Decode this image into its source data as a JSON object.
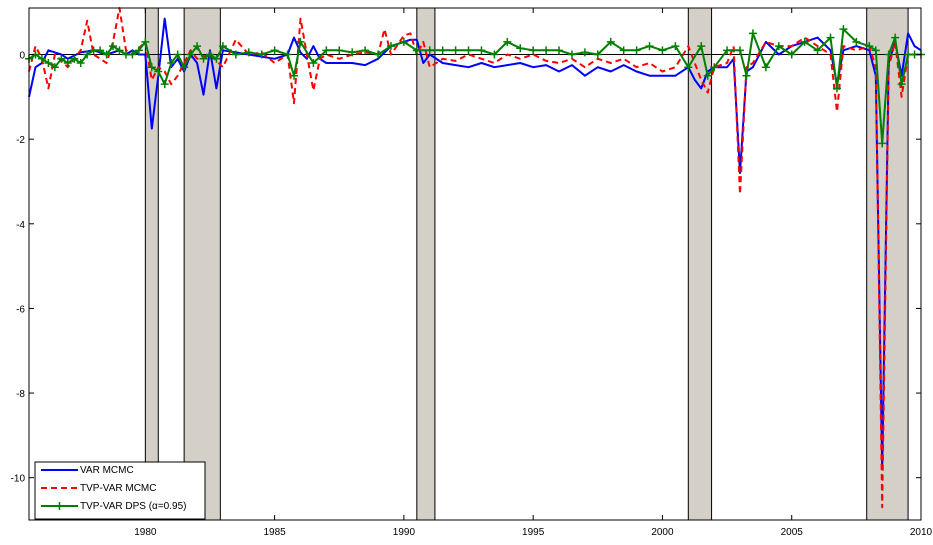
{
  "chart_data": {
    "type": "line",
    "title": "",
    "xlabel": "",
    "ylabel": "",
    "xlim": [
      1975.5,
      2010
    ],
    "ylim": [
      -11,
      1.1
    ],
    "x_ticks": [
      1980,
      1985,
      1990,
      1995,
      2000,
      2005,
      2010
    ],
    "x_tick_labels": [
      "1980",
      "1985",
      "1990",
      "1995",
      "2000",
      "2005",
      "2010"
    ],
    "y_ticks": [
      0,
      -2,
      -4,
      -6,
      -8,
      -10
    ],
    "y_tick_labels": [
      "0",
      "-2",
      "-4",
      "-6",
      "-8",
      "-10"
    ],
    "grid": false,
    "zero_line": true,
    "legend_position": "bottom-left",
    "recession_shading": [
      {
        "start": 1980.0,
        "end": 1980.5
      },
      {
        "start": 1981.5,
        "end": 1982.9
      },
      {
        "start": 1990.5,
        "end": 1991.2
      },
      {
        "start": 2001.0,
        "end": 2001.9
      },
      {
        "start": 2007.9,
        "end": 2009.5
      }
    ],
    "series": [
      {
        "name": "VAR MCMC",
        "color": "#0000ff",
        "style": "solid",
        "marker": "none",
        "x": [
          1975.5,
          1975.75,
          1976.0,
          1976.25,
          1976.5,
          1976.75,
          1977.0,
          1977.5,
          1978.0,
          1978.5,
          1979.0,
          1979.25,
          1979.5,
          1979.75,
          1980.0,
          1980.25,
          1980.5,
          1980.75,
          1981.0,
          1981.25,
          1981.5,
          1981.75,
          1982.0,
          1982.25,
          1982.5,
          1982.75,
          1983.0,
          1983.5,
          1984.0,
          1984.5,
          1985.0,
          1985.5,
          1985.75,
          1986.0,
          1986.25,
          1986.5,
          1986.75,
          1987.0,
          1987.5,
          1988.0,
          1988.5,
          1989.0,
          1989.5,
          1990.0,
          1990.25,
          1990.5,
          1990.75,
          1991.0,
          1991.5,
          1992.0,
          1992.5,
          1993.0,
          1993.5,
          1994.0,
          1994.5,
          1995.0,
          1995.5,
          1996.0,
          1996.5,
          1997.0,
          1997.5,
          1998.0,
          1998.5,
          1999.0,
          1999.5,
          2000.0,
          2000.5,
          2001.0,
          2001.25,
          2001.5,
          2001.75,
          2002.0,
          2002.5,
          2002.75,
          2003.0,
          2003.25,
          2003.5,
          2004.0,
          2004.5,
          2005.0,
          2005.5,
          2006.0,
          2006.5,
          2006.75,
          2007.0,
          2007.5,
          2008.0,
          2008.25,
          2008.5,
          2008.75,
          2009.0,
          2009.25,
          2009.5,
          2009.75,
          2010.0
        ],
        "y": [
          -1.0,
          -0.3,
          -0.2,
          0.1,
          0.05,
          0.0,
          -0.1,
          0.05,
          0.1,
          0.0,
          0.1,
          0.0,
          0.1,
          0.0,
          0.0,
          -1.75,
          -0.5,
          0.85,
          -0.3,
          -0.1,
          -0.4,
          0.0,
          -0.2,
          -0.95,
          0.1,
          -0.8,
          0.1,
          0.05,
          0.0,
          -0.05,
          -0.1,
          0.0,
          0.4,
          0.05,
          -0.1,
          0.2,
          -0.1,
          -0.2,
          -0.2,
          -0.2,
          -0.25,
          -0.1,
          0.2,
          0.3,
          0.35,
          0.35,
          -0.2,
          0.0,
          -0.2,
          -0.25,
          -0.3,
          -0.2,
          -0.3,
          -0.25,
          -0.2,
          -0.3,
          -0.25,
          -0.4,
          -0.25,
          -0.5,
          -0.3,
          -0.4,
          -0.25,
          -0.4,
          -0.5,
          -0.5,
          -0.5,
          -0.3,
          -0.6,
          -0.8,
          -0.4,
          -0.3,
          -0.3,
          -0.1,
          -2.8,
          -0.4,
          -0.3,
          0.3,
          0.0,
          0.2,
          0.3,
          0.4,
          0.1,
          -0.7,
          0.1,
          0.2,
          0.1,
          -0.5,
          -9.8,
          -0.2,
          0.3,
          -0.5,
          0.5,
          0.2,
          0.1
        ]
      },
      {
        "name": "TVP-VAR MCMC",
        "color": "#ff0000",
        "style": "dashed",
        "marker": "none",
        "x": [
          1975.5,
          1975.75,
          1976.0,
          1976.25,
          1976.5,
          1977.0,
          1977.5,
          1977.75,
          1978.0,
          1978.5,
          1978.75,
          1979.0,
          1979.25,
          1979.5,
          1980.0,
          1980.25,
          1980.5,
          1980.75,
          1981.0,
          1981.25,
          1981.5,
          1981.75,
          1982.0,
          1982.5,
          1983.0,
          1983.5,
          1984.0,
          1984.5,
          1985.0,
          1985.5,
          1985.75,
          1986.0,
          1986.25,
          1986.5,
          1986.75,
          1987.0,
          1987.5,
          1988.0,
          1988.5,
          1989.0,
          1989.25,
          1989.5,
          1990.0,
          1990.25,
          1990.5,
          1990.75,
          1991.0,
          1991.5,
          1992.0,
          1992.5,
          1993.0,
          1993.5,
          1994.0,
          1994.5,
          1995.0,
          1995.5,
          1996.0,
          1996.5,
          1997.0,
          1997.5,
          1998.0,
          1998.5,
          1999.0,
          1999.5,
          2000.0,
          2000.5,
          2001.0,
          2001.5,
          2001.75,
          2002.0,
          2002.5,
          2002.75,
          2003.0,
          2003.25,
          2003.5,
          2004.0,
          2004.5,
          2005.0,
          2005.5,
          2006.0,
          2006.5,
          2006.75,
          2007.0,
          2007.5,
          2008.0,
          2008.25,
          2008.5,
          2008.75,
          2009.0,
          2009.25,
          2009.5,
          2009.75,
          2010.0
        ],
        "y": [
          -0.4,
          0.2,
          -0.1,
          -0.8,
          0.0,
          -0.3,
          0.1,
          0.8,
          0.0,
          -0.2,
          0.3,
          1.1,
          0.1,
          0.0,
          0.3,
          -0.6,
          -0.3,
          -0.4,
          -0.7,
          -0.5,
          -0.2,
          0.1,
          -0.1,
          0.0,
          -0.3,
          0.35,
          0.0,
          0.05,
          -0.2,
          0.0,
          -1.15,
          0.85,
          0.0,
          -0.85,
          -0.1,
          0.0,
          -0.1,
          0.0,
          0.05,
          0.0,
          0.6,
          0.0,
          0.45,
          0.5,
          0.0,
          0.3,
          -0.3,
          -0.1,
          -0.15,
          0.0,
          -0.1,
          -0.2,
          0.0,
          -0.1,
          0.0,
          -0.15,
          -0.2,
          -0.1,
          -0.3,
          -0.1,
          -0.2,
          -0.1,
          -0.3,
          -0.2,
          -0.4,
          -0.3,
          0.2,
          -0.6,
          -0.9,
          -0.3,
          -0.2,
          0.2,
          -3.3,
          -0.3,
          -0.2,
          0.3,
          0.2,
          0.2,
          0.4,
          0.2,
          0.0,
          -1.35,
          0.2,
          0.1,
          0.2,
          -0.3,
          -10.7,
          -0.3,
          0.3,
          -1.0,
          0.0,
          0.0,
          0.0
        ]
      },
      {
        "name": "TVP-VAR DPS (α=0.95)",
        "color": "#008000",
        "style": "solid",
        "marker": "plus",
        "x": [
          1975.5,
          1975.75,
          1976.0,
          1976.25,
          1976.5,
          1976.75,
          1977.0,
          1977.25,
          1977.5,
          1977.75,
          1978.0,
          1978.25,
          1978.5,
          1978.75,
          1979.0,
          1979.25,
          1979.5,
          1979.75,
          1980.0,
          1980.25,
          1980.5,
          1980.75,
          1981.0,
          1981.25,
          1981.5,
          1981.75,
          1982.0,
          1982.25,
          1982.5,
          1982.75,
          1983.0,
          1983.5,
          1984.0,
          1984.5,
          1985.0,
          1985.5,
          1985.75,
          1986.0,
          1986.5,
          1987.0,
          1987.5,
          1988.0,
          1988.5,
          1989.0,
          1989.5,
          1990.0,
          1990.5,
          1991.0,
          1991.5,
          1992.0,
          1992.5,
          1993.0,
          1993.5,
          1994.0,
          1994.5,
          1995.0,
          1995.5,
          1996.0,
          1996.5,
          1997.0,
          1997.5,
          1998.0,
          1998.5,
          1999.0,
          1999.5,
          2000.0,
          2000.5,
          2001.0,
          2001.5,
          2001.75,
          2002.0,
          2002.5,
          2003.0,
          2003.25,
          2003.5,
          2004.0,
          2004.5,
          2005.0,
          2005.5,
          2006.0,
          2006.5,
          2006.75,
          2007.0,
          2007.5,
          2008.0,
          2008.25,
          2008.5,
          2008.75,
          2009.0,
          2009.25,
          2009.5,
          2009.75,
          2010.0
        ],
        "y": [
          -0.1,
          0.0,
          -0.1,
          -0.2,
          -0.3,
          -0.1,
          -0.2,
          -0.1,
          -0.2,
          0.0,
          0.1,
          0.1,
          0.0,
          0.2,
          0.1,
          0.0,
          0.0,
          0.1,
          0.3,
          -0.3,
          -0.4,
          -0.7,
          -0.2,
          0.0,
          -0.3,
          0.0,
          0.2,
          -0.1,
          0.0,
          -0.1,
          0.2,
          0.0,
          0.05,
          0.0,
          0.1,
          0.0,
          -0.5,
          0.3,
          -0.2,
          0.1,
          0.1,
          0.05,
          0.1,
          0.0,
          0.2,
          0.3,
          0.1,
          0.1,
          0.1,
          0.1,
          0.1,
          0.1,
          0.0,
          0.3,
          0.15,
          0.1,
          0.1,
          0.1,
          0.0,
          0.05,
          0.0,
          0.3,
          0.1,
          0.1,
          0.2,
          0.1,
          0.2,
          -0.3,
          0.2,
          -0.5,
          -0.3,
          0.1,
          0.1,
          -0.5,
          0.5,
          -0.3,
          0.2,
          0.0,
          0.3,
          0.1,
          0.4,
          -0.8,
          0.6,
          0.3,
          0.2,
          0.1,
          -2.1,
          0.0,
          0.4,
          -0.7,
          0.0,
          0.0,
          0.0
        ]
      }
    ]
  },
  "legend": {
    "items": [
      {
        "label": "VAR MCMC"
      },
      {
        "label": "TVP-VAR MCMC"
      },
      {
        "label": "TVP-VAR DPS (α=0.95)"
      }
    ]
  }
}
